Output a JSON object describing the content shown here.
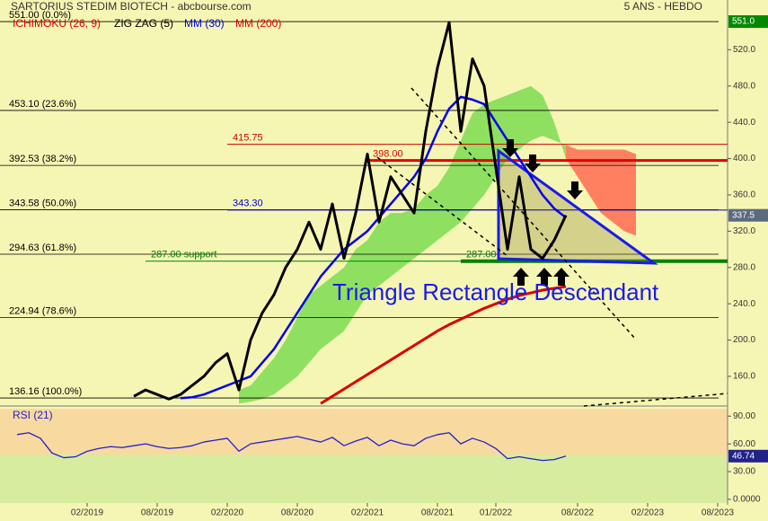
{
  "chart_data": [
    {
      "type": "line",
      "title": "SARTORIUS STEDIM BIOTECH - abcbourse.com",
      "subtitle": "5 ANS - HEBDO",
      "annotation": "Triangle Rectangle Descendant",
      "xticks": [
        "02/2019",
        "08/2019",
        "02/2020",
        "08/2020",
        "02/2021",
        "08/2021",
        "01/2022",
        "08/2022",
        "02/2023",
        "08/2023"
      ],
      "ylim": [
        127.3,
        574.8
      ],
      "yticks": [
        {
          "value": 160,
          "label": "160.0"
        },
        {
          "value": 200,
          "label": "200.0"
        },
        {
          "value": 240,
          "label": "240.0"
        },
        {
          "value": 280,
          "label": "280.0"
        },
        {
          "value": 320,
          "label": "320.0"
        },
        {
          "value": 360,
          "label": "360.0"
        },
        {
          "value": 400,
          "label": "400.0"
        },
        {
          "value": 440,
          "label": "440.0"
        },
        {
          "value": 480,
          "label": "480.0"
        },
        {
          "value": 520,
          "label": "520.0"
        }
      ],
      "top_value": {
        "value": 551,
        "label": "551.0"
      },
      "last_value": 337.5,
      "levels": [
        {
          "value": 551,
          "label": "551.00 (0.0%)"
        },
        {
          "value": 453.1,
          "label": "453.10 (23.6%)"
        },
        {
          "value": 392.53,
          "label": "392.53 (38.2%)"
        },
        {
          "value": 343.58,
          "label": "343.58 (50.0%)"
        },
        {
          "value": 294.63,
          "label": "294.63 (61.8%)"
        },
        {
          "value": 224.94,
          "label": "224.94 (78.6%)"
        },
        {
          "value": 136.16,
          "label": "136.16 (100.0%)"
        }
      ],
      "lines": [
        {
          "value": 415.75,
          "label": "415.75",
          "color": "#cc0000",
          "from": "02/2020",
          "width": 1
        },
        {
          "value": 398,
          "label": "398.00",
          "color": "#e00000",
          "from": "02/2021",
          "width": 3
        },
        {
          "value": 343.3,
          "label": "343.30",
          "color": "#0000cc",
          "from": "02/2020",
          "width": 1
        },
        {
          "value": 287,
          "label": "287.00  support",
          "color": "#008000",
          "from": "07/2019",
          "width": 1
        },
        {
          "value": 287,
          "label": "287.00",
          "color": "#008000",
          "from": "10/2021",
          "width": 4
        }
      ],
      "ichimoku": {
        "name": "ICHIMOKU (26, 9)",
        "color": "#e00000",
        "up_color": "#8fe060",
        "down_color": "#ff8060",
        "x": [
          "03/2020",
          "04/2020",
          "05/2020",
          "06/2020",
          "07/2020",
          "08/2020",
          "09/2020",
          "10/2020",
          "11/2020",
          "12/2020",
          "01/2021",
          "02/2021",
          "03/2021",
          "04/2021",
          "05/2021",
          "06/2021",
          "07/2021",
          "08/2021",
          "09/2021",
          "10/2021",
          "11/2021",
          "12/2021",
          "01/2022",
          "02/2022",
          "03/2022",
          "04/2022",
          "05/2022",
          "06/2022",
          "07/2022",
          "08/2022",
          "09/2022",
          "10/2022",
          "11/2022",
          "12/2022",
          "01/2023"
        ],
        "span_a": [
          145,
          150,
          165,
          180,
          200,
          225,
          250,
          260,
          270,
          280,
          300,
          310,
          330,
          340,
          340,
          345,
          360,
          370,
          390,
          420,
          450,
          460,
          465,
          470,
          475,
          480,
          470,
          440,
          400,
          380,
          360,
          340,
          330,
          320,
          315
        ],
        "span_b": [
          130,
          132,
          135,
          140,
          150,
          160,
          175,
          190,
          200,
          210,
          230,
          250,
          260,
          270,
          280,
          290,
          300,
          310,
          320,
          330,
          345,
          360,
          380,
          400,
          410,
          420,
          425,
          420,
          415,
          410,
          410,
          410,
          410,
          410,
          405
        ]
      },
      "series": [
        {
          "name": "ZIG ZAG (5)",
          "color": "#000000",
          "width": 3,
          "x": [
            "06/2019",
            "07/2019",
            "08/2019",
            "09/2019",
            "10/2019",
            "11/2019",
            "12/2019",
            "01/2020",
            "02/2020",
            "03/2020",
            "04/2020",
            "05/2020",
            "06/2020",
            "07/2020",
            "08/2020",
            "09/2020",
            "10/2020",
            "11/2020",
            "12/2020",
            "01/2021",
            "02/2021",
            "03/2021",
            "04/2021",
            "05/2021",
            "06/2021",
            "07/2021",
            "08/2021",
            "09/2021",
            "10/2021",
            "11/2021",
            "12/2021",
            "01/2022",
            "02/2022",
            "03/2022",
            "04/2022",
            "05/2022",
            "06/2022",
            "07/2022"
          ],
          "values": [
            138,
            145,
            140,
            135,
            140,
            150,
            160,
            175,
            185,
            145,
            200,
            230,
            250,
            280,
            300,
            330,
            300,
            350,
            290,
            340,
            405,
            330,
            380,
            360,
            340,
            430,
            500,
            550,
            430,
            510,
            480,
            390,
            300,
            380,
            300,
            290,
            310,
            337.5
          ]
        },
        {
          "name": "MM (30)",
          "color": "#0000ee",
          "width": 2.5,
          "x": [
            "10/2019",
            "11/2019",
            "12/2019",
            "01/2020",
            "02/2020",
            "03/2020",
            "04/2020",
            "05/2020",
            "06/2020",
            "07/2020",
            "08/2020",
            "09/2020",
            "10/2020",
            "11/2020",
            "12/2020",
            "01/2021",
            "02/2021",
            "03/2021",
            "04/2021",
            "05/2021",
            "06/2021",
            "07/2021",
            "08/2021",
            "09/2021",
            "10/2021",
            "11/2021",
            "12/2021",
            "01/2022",
            "02/2022",
            "03/2022",
            "04/2022",
            "05/2022",
            "06/2022",
            "07/2022"
          ],
          "values": [
            136,
            137,
            140,
            145,
            150,
            155,
            160,
            175,
            190,
            210,
            230,
            250,
            270,
            285,
            300,
            310,
            320,
            335,
            350,
            365,
            380,
            400,
            430,
            455,
            468,
            465,
            460,
            440,
            420,
            400,
            380,
            360,
            345,
            335
          ]
        },
        {
          "name": "MM (200)",
          "color": "#dd0000",
          "width": 3,
          "x": [
            "10/2020",
            "11/2020",
            "12/2020",
            "01/2021",
            "02/2021",
            "03/2021",
            "04/2021",
            "05/2021",
            "06/2021",
            "07/2021",
            "08/2021",
            "09/2021",
            "10/2021",
            "11/2021",
            "12/2021",
            "01/2022",
            "02/2022",
            "03/2022",
            "04/2022",
            "05/2022",
            "06/2022",
            "07/2022"
          ],
          "values": [
            130,
            138,
            146,
            154,
            162,
            170,
            178,
            186,
            194,
            202,
            210,
            217,
            223,
            229,
            235,
            240,
            245,
            249,
            252,
            255,
            257,
            259
          ]
        }
      ]
    },
    {
      "type": "line",
      "title": "RSI (21)",
      "ylim": [
        -4,
        98
      ],
      "yticks": [
        {
          "value": 0,
          "label": "0.0000"
        },
        {
          "value": 30,
          "label": "30.00"
        },
        {
          "value": 60,
          "label": "60.00"
        },
        {
          "value": 90,
          "label": "90.00"
        }
      ],
      "last_value": 46.74,
      "color": "#2222cc",
      "x": [
        "08/2018",
        "09/2018",
        "10/2018",
        "11/2018",
        "12/2018",
        "01/2019",
        "02/2019",
        "03/2019",
        "04/2019",
        "05/2019",
        "06/2019",
        "07/2019",
        "08/2019",
        "09/2019",
        "10/2019",
        "11/2019",
        "12/2019",
        "01/2020",
        "02/2020",
        "03/2020",
        "04/2020",
        "05/2020",
        "06/2020",
        "07/2020",
        "08/2020",
        "09/2020",
        "10/2020",
        "11/2020",
        "12/2020",
        "01/2021",
        "02/2021",
        "03/2021",
        "04/2021",
        "05/2021",
        "06/2021",
        "07/2021",
        "08/2021",
        "09/2021",
        "10/2021",
        "11/2021",
        "12/2021",
        "01/2022",
        "02/2022",
        "03/2022",
        "04/2022",
        "05/2022",
        "06/2022",
        "07/2022"
      ],
      "values": [
        70,
        72,
        66,
        50,
        45,
        46,
        52,
        55,
        57,
        56,
        58,
        60,
        57,
        55,
        56,
        58,
        62,
        64,
        66,
        52,
        60,
        62,
        64,
        66,
        68,
        65,
        62,
        67,
        58,
        63,
        67,
        58,
        64,
        60,
        58,
        66,
        70,
        72,
        60,
        66,
        62,
        55,
        44,
        46,
        44,
        42,
        43,
        46.74
      ]
    }
  ]
}
